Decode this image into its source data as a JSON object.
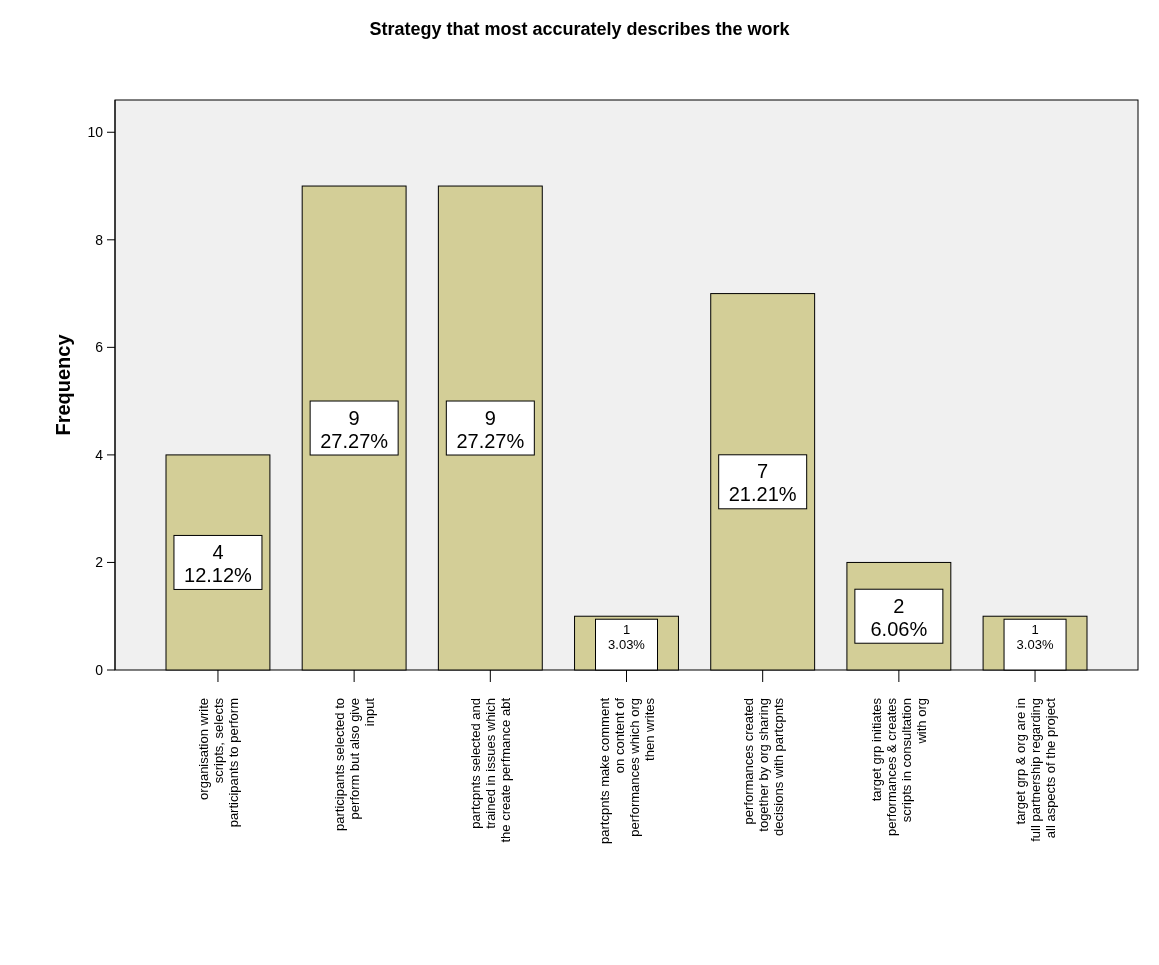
{
  "chart_data": {
    "type": "bar",
    "title": "Strategy that most accurately describes the work",
    "ylabel": "Frequency",
    "categories": [
      "organisation write\nscripts, selects\nparticipants to perform",
      "participants selected to\nperform but also give\ninput",
      "partcpnts selected and\ntrained in issues which\nthe create perfmance abt",
      "partcpnts make comment\non content of\nperformances which org\nthen writes",
      "performances created\ntogether by org sharing\ndecisions with partcpnts",
      "target grp initiates\nperformances & creates\nscripts in consultation\nwith org",
      "target grp & org are in\nfull partnership regarding\nall aspects of the project"
    ],
    "values": [
      4,
      9,
      9,
      1,
      7,
      2,
      1
    ],
    "value_labels": [
      "4\n12.12%",
      "9\n27.27%",
      "9\n27.27%",
      "1\n3.03%",
      "7\n21.21%",
      "2\n6.06%",
      "1\n3.03%"
    ],
    "color": "#d3ce97",
    "ylim": [
      0,
      10.6
    ],
    "yticks": [
      0,
      2,
      4,
      6,
      8,
      10
    ],
    "grid": false
  }
}
